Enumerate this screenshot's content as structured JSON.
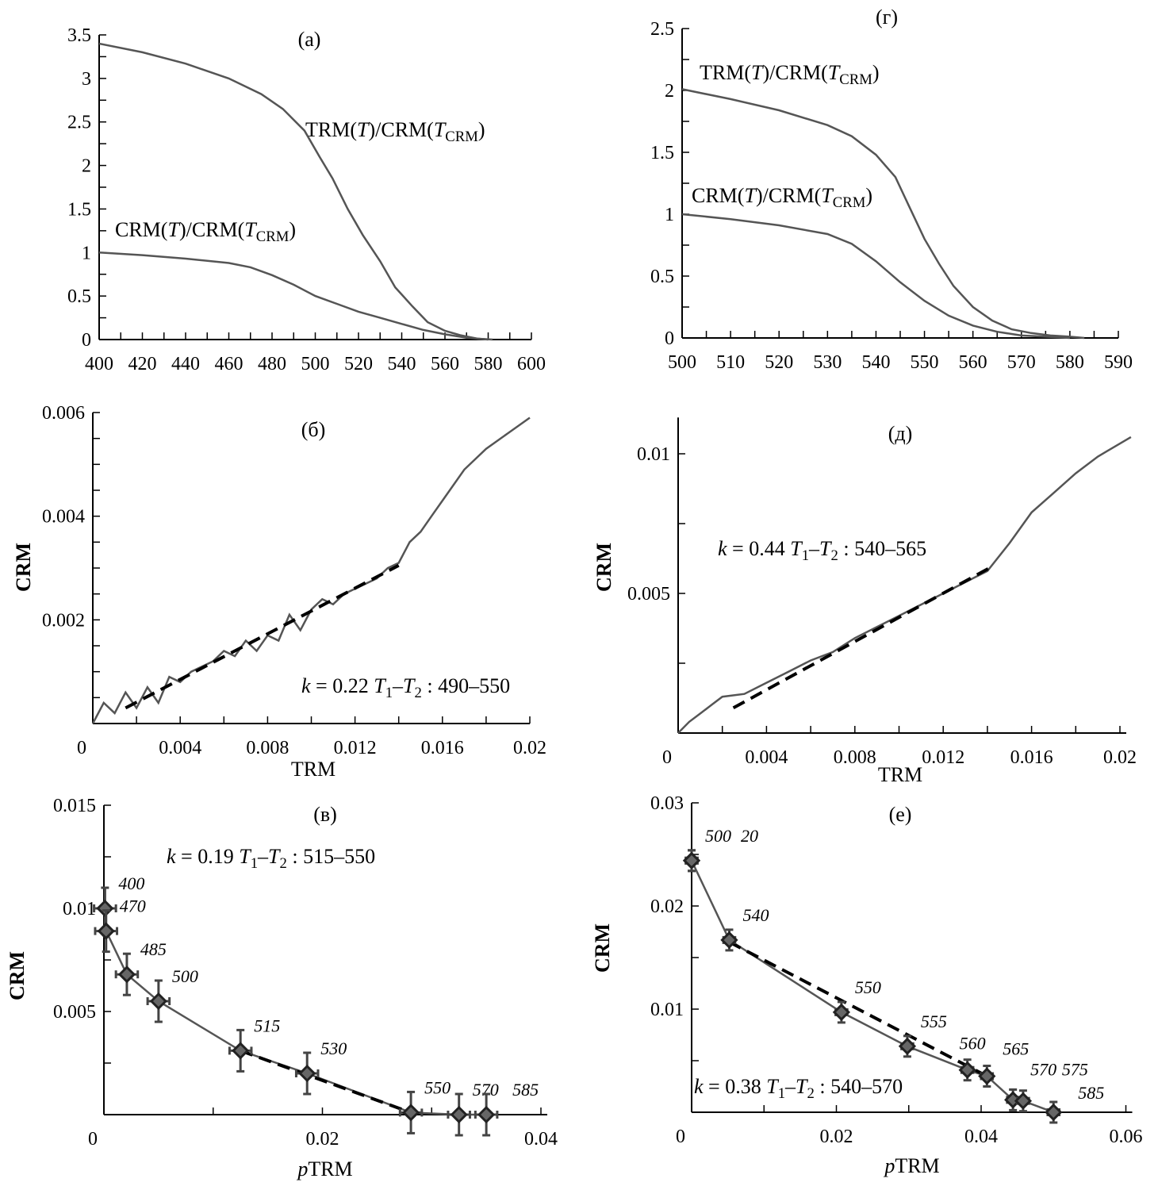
{
  "chart_data": [
    {
      "id": "a",
      "type": "line",
      "title": "(а)",
      "xlim": [
        400,
        600
      ],
      "ylim": [
        0,
        3.5
      ],
      "xticks": [
        400,
        420,
        440,
        460,
        480,
        500,
        520,
        540,
        560,
        580,
        600
      ],
      "xtick_labels": [
        "400",
        "420",
        "440",
        "460",
        "480",
        "500",
        "520",
        "540",
        "560",
        "580",
        "600"
      ],
      "yticks": [
        0,
        0.5,
        1,
        1.5,
        2,
        2.5,
        3,
        3.5
      ],
      "ytick_labels": [
        "0",
        "0.5",
        "1",
        "1.5",
        "2",
        "2.5",
        "3",
        "3.5"
      ],
      "xlabel": "",
      "ylabel": "",
      "series": [
        {
          "name": "TRM(*T*)/CRM(*T*_{CRM})",
          "x": [
            400,
            420,
            440,
            460,
            475,
            485,
            495,
            502,
            508,
            515,
            522,
            530,
            537,
            545,
            552,
            560,
            567,
            575,
            582
          ],
          "y": [
            3.4,
            3.3,
            3.17,
            3.0,
            2.82,
            2.65,
            2.4,
            2.1,
            1.85,
            1.5,
            1.2,
            0.9,
            0.6,
            0.38,
            0.2,
            0.1,
            0.05,
            0.01,
            0
          ]
        },
        {
          "name": "CRM(*T*)/CRM(*T*_{CRM})",
          "x": [
            400,
            420,
            440,
            460,
            470,
            480,
            490,
            500,
            510,
            520,
            530,
            540,
            550,
            560,
            570,
            580
          ],
          "y": [
            1.0,
            0.97,
            0.93,
            0.88,
            0.83,
            0.74,
            0.63,
            0.5,
            0.41,
            0.32,
            0.25,
            0.18,
            0.11,
            0.06,
            0.02,
            0
          ]
        }
      ]
    },
    {
      "id": "g",
      "type": "line",
      "title": "(г)",
      "xlim": [
        500,
        590
      ],
      "ylim": [
        0,
        2.5
      ],
      "xticks": [
        500,
        510,
        520,
        530,
        540,
        550,
        560,
        570,
        580,
        590
      ],
      "xtick_labels": [
        "500",
        "510",
        "520",
        "530",
        "540",
        "550",
        "560",
        "570",
        "580",
        "590"
      ],
      "yticks": [
        0,
        0.5,
        1,
        1.5,
        2,
        2.5
      ],
      "ytick_labels": [
        "0",
        "0.5",
        "1",
        "1.5",
        "2",
        "2.5"
      ],
      "xlabel": "",
      "ylabel": "",
      "series": [
        {
          "name": "TRM(*T*)/CRM(*T*_{CRM})",
          "x": [
            500,
            510,
            520,
            530,
            535,
            540,
            544,
            547,
            550,
            553,
            556,
            560,
            564,
            568,
            572,
            576,
            580,
            583
          ],
          "y": [
            2.01,
            1.93,
            1.84,
            1.72,
            1.63,
            1.48,
            1.3,
            1.05,
            0.8,
            0.6,
            0.42,
            0.25,
            0.14,
            0.07,
            0.04,
            0.02,
            0.01,
            0
          ]
        },
        {
          "name": "CRM(*T*)/CRM(*T*_{CRM})",
          "x": [
            500,
            510,
            520,
            530,
            535,
            540,
            545,
            550,
            555,
            560,
            565,
            570,
            575,
            580
          ],
          "y": [
            1.0,
            0.96,
            0.91,
            0.84,
            0.76,
            0.62,
            0.45,
            0.3,
            0.18,
            0.1,
            0.05,
            0.02,
            0.01,
            0
          ]
        }
      ]
    },
    {
      "id": "b",
      "type": "line",
      "title": "(б)",
      "xlim": [
        0,
        0.02
      ],
      "ylim": [
        0,
        0.006
      ],
      "xticks": [
        0,
        0.004,
        0.008,
        0.012,
        0.016,
        0.02
      ],
      "xtick_labels": [
        "0",
        "0.004",
        "0.008",
        "0.012",
        "0.016",
        "0.02"
      ],
      "yticks": [
        0.002,
        0.004,
        0.006
      ],
      "ytick_labels": [
        "0.002",
        "0.004",
        "0.006"
      ],
      "xlabel": "TRM",
      "ylabel": "CRM",
      "annotation": "*k* = 0.22   *T*_{1}–*T*_{2} : 490–550",
      "series": [
        {
          "x": [
            0,
            0.0005,
            0.001,
            0.0015,
            0.002,
            0.0025,
            0.003,
            0.0035,
            0.004,
            0.0045,
            0.005,
            0.0055,
            0.006,
            0.0065,
            0.007,
            0.0075,
            0.008,
            0.0085,
            0.009,
            0.0095,
            0.01,
            0.0105,
            0.011,
            0.0115,
            0.012,
            0.0125,
            0.013,
            0.0135,
            0.014,
            0.0145,
            0.015,
            0.0155,
            0.016,
            0.017,
            0.018,
            0.019,
            0.02
          ],
          "y": [
            0,
            0.0004,
            0.0002,
            0.0006,
            0.0003,
            0.0007,
            0.0004,
            0.0009,
            0.0008,
            0.001,
            0.0011,
            0.0012,
            0.0014,
            0.0013,
            0.0016,
            0.0014,
            0.0017,
            0.0016,
            0.0021,
            0.0018,
            0.0022,
            0.0024,
            0.0023,
            0.0025,
            0.0026,
            0.0027,
            0.0028,
            0.003,
            0.0031,
            0.0035,
            0.0037,
            0.004,
            0.0043,
            0.0049,
            0.0053,
            0.0056,
            0.0059
          ]
        },
        {
          "fit": true,
          "x": [
            0.0015,
            0.014
          ],
          "y": [
            0.0003,
            0.00305
          ]
        }
      ]
    },
    {
      "id": "d",
      "type": "line",
      "title": "(д)",
      "xlim": [
        0,
        0.02
      ],
      "ylim": [
        0,
        0.01
      ],
      "xticks": [
        0,
        0.004,
        0.008,
        0.012,
        0.016,
        0.02
      ],
      "xtick_labels": [
        "0",
        "0.004",
        "0.008",
        "0.012",
        "0.016",
        "0.02"
      ],
      "yticks": [
        0.005,
        0.01
      ],
      "ytick_labels": [
        "0.005",
        "0.01"
      ],
      "xlabel": "TRM",
      "ylabel": "CRM",
      "annotation": "*k* = 0.44   *T*_{1}–*T*_{2} : 540–565",
      "series": [
        {
          "x": [
            0,
            0.0005,
            0.001,
            0.0015,
            0.002,
            0.003,
            0.004,
            0.005,
            0.006,
            0.007,
            0.008,
            0.009,
            0.01,
            0.011,
            0.012,
            0.013,
            0.014,
            0.015,
            0.016,
            0.017,
            0.018,
            0.019,
            0.0205
          ],
          "y": [
            0,
            0.0004,
            0.0007,
            0.001,
            0.0013,
            0.0014,
            0.0018,
            0.0022,
            0.0026,
            0.0029,
            0.0034,
            0.0038,
            0.0042,
            0.0046,
            0.005,
            0.0054,
            0.0058,
            0.0068,
            0.0079,
            0.0086,
            0.0093,
            0.0099,
            0.0106
          ]
        },
        {
          "fit": true,
          "x": [
            0.0025,
            0.0143
          ],
          "y": [
            0.0009,
            0.006
          ]
        }
      ]
    },
    {
      "id": "v",
      "type": "scatter",
      "title": "(в)",
      "xlim": [
        0,
        0.04
      ],
      "ylim": [
        0,
        0.015
      ],
      "xticks": [
        0,
        0.02,
        0.04
      ],
      "xtick_labels": [
        "0",
        "0.02",
        "0.04"
      ],
      "yticks": [
        0.005,
        0.01,
        0.015
      ],
      "ytick_labels": [
        "0.005",
        "0.01",
        "0.015"
      ],
      "xlabel": "*p*TRM",
      "ylabel": "CRM",
      "annotation": "*k* = 0.19   *T*_{1}–*T*_{2} : 515–550",
      "points": [
        {
          "label": "400",
          "x": 0.0001,
          "y": 0.01
        },
        {
          "label": "470",
          "x": 0.0002,
          "y": 0.0089
        },
        {
          "label": "485",
          "x": 0.0021,
          "y": 0.0068
        },
        {
          "label": "500",
          "x": 0.005,
          "y": 0.0055
        },
        {
          "label": "515",
          "x": 0.0125,
          "y": 0.0031
        },
        {
          "label": "530",
          "x": 0.0186,
          "y": 0.002
        },
        {
          "label": "550",
          "x": 0.0281,
          "y": 0.0001
        },
        {
          "label": "570",
          "x": 0.0325,
          "y": 0.0
        },
        {
          "label": "585",
          "x": 0.035,
          "y": 0.0
        }
      ],
      "fit": {
        "x": [
          0.0125,
          0.0281
        ],
        "y": [
          0.0031,
          0.0001
        ]
      }
    },
    {
      "id": "e",
      "type": "scatter",
      "title": "(е)",
      "xlim": [
        0,
        0.06
      ],
      "ylim": [
        0,
        0.03
      ],
      "xticks": [
        0,
        0.02,
        0.04,
        0.06
      ],
      "xtick_labels": [
        "0",
        "0.02",
        "0.04",
        "0.06"
      ],
      "yticks": [
        0.01,
        0.02,
        0.03
      ],
      "ytick_labels": [
        "0.01",
        "0.02",
        "0.03"
      ],
      "xlabel": "*p*TRM",
      "ylabel": "CRM",
      "annotation": "*k* = 0.38   *T*_{1}–*T*_{2} : 540–570",
      "points": [
        {
          "label": "20",
          "x": 0.0,
          "y": 0.0244
        },
        {
          "label": "500",
          "x": 0.0,
          "y": 0.0244
        },
        {
          "label": "540",
          "x": 0.0052,
          "y": 0.0167
        },
        {
          "label": "550",
          "x": 0.0207,
          "y": 0.0097
        },
        {
          "label": "555",
          "x": 0.0298,
          "y": 0.0064
        },
        {
          "label": "560",
          "x": 0.0381,
          "y": 0.0041
        },
        {
          "label": "565",
          "x": 0.0408,
          "y": 0.0035
        },
        {
          "label": "570",
          "x": 0.0444,
          "y": 0.0012
        },
        {
          "label": "575",
          "x": 0.0458,
          "y": 0.0011
        },
        {
          "label": "585",
          "x": 0.05,
          "y": 0.0
        }
      ],
      "fit": {
        "x": [
          0.0052,
          0.0408
        ],
        "y": [
          0.0165,
          0.0035
        ]
      }
    }
  ],
  "colors": {
    "curve": "#555555",
    "fit": "#000000",
    "marker": "#222222",
    "axis": "#000000"
  }
}
